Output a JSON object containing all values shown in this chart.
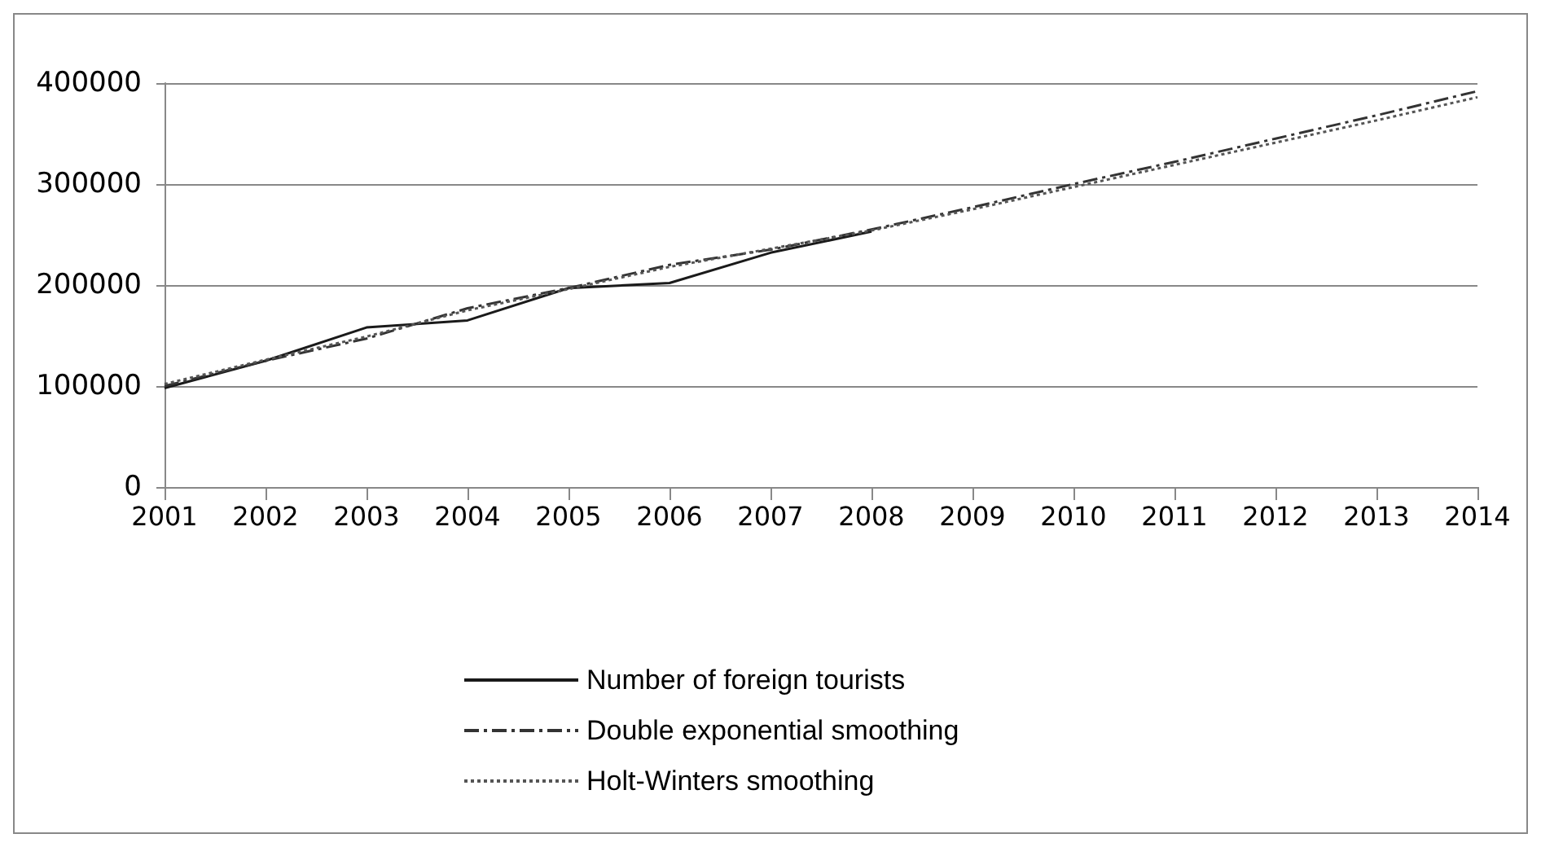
{
  "chart_data": {
    "type": "line",
    "categories": [
      "2001",
      "2002",
      "2003",
      "2004",
      "2005",
      "2006",
      "2007",
      "2008",
      "2009",
      "2010",
      "2011",
      "2012",
      "2013",
      "2014"
    ],
    "series": [
      {
        "name": "Number of foreign tourists",
        "color": "#1a1a1a",
        "line_style": "solid",
        "values": [
          98000,
          125000,
          158000,
          165000,
          197000,
          202000,
          232000,
          253000,
          null,
          null,
          null,
          null,
          null,
          null
        ]
      },
      {
        "name": "Double exponential smoothing",
        "color": "#333333",
        "line_style": "dashed",
        "values": [
          100000,
          125000,
          147000,
          177000,
          197000,
          220000,
          235000,
          255000,
          277000,
          300000,
          322000,
          345000,
          368000,
          392000
        ]
      },
      {
        "name": "Holt-Winters smoothing",
        "color": "#555555",
        "line_style": "dotted",
        "values": [
          102000,
          126000,
          149000,
          175000,
          196000,
          218000,
          236000,
          254000,
          275000,
          297000,
          319000,
          341000,
          363000,
          386000
        ]
      }
    ],
    "ylim": [
      0,
      400000
    ],
    "yticks": [
      0,
      100000,
      200000,
      300000,
      400000
    ],
    "grid": "y",
    "legend": "bottom",
    "marker": "none"
  }
}
